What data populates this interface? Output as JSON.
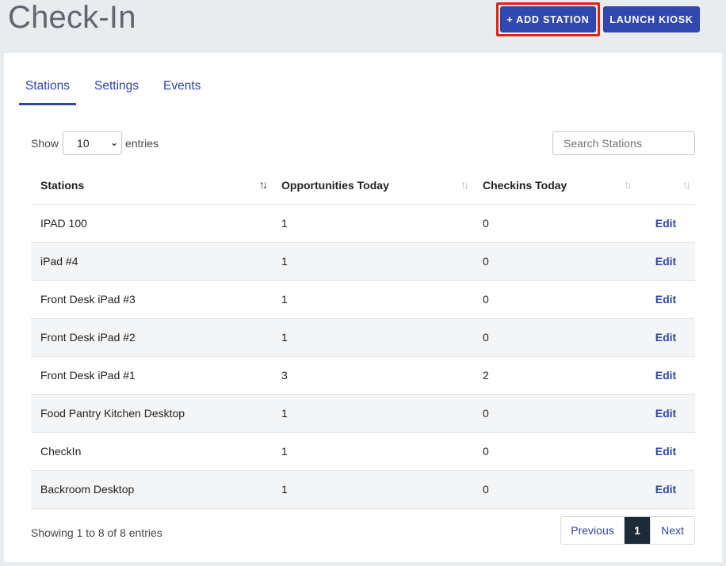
{
  "header": {
    "title": "Check-In",
    "add_station_label": "+ ADD STATION",
    "launch_kiosk_label": "LAUNCH KIOSK"
  },
  "tabs": [
    {
      "label": "Stations",
      "active": true
    },
    {
      "label": "Settings",
      "active": false
    },
    {
      "label": "Events",
      "active": false
    }
  ],
  "length_menu": {
    "prefix": "Show",
    "selected": "10",
    "suffix": "entries"
  },
  "search": {
    "placeholder": "Search Stations"
  },
  "table": {
    "columns": [
      "Stations",
      "Opportunities Today",
      "Checkins Today",
      ""
    ],
    "rows": [
      {
        "station": "IPAD 100",
        "opportunities": "1",
        "checkins": "0",
        "action": "Edit"
      },
      {
        "station": "iPad #4",
        "opportunities": "1",
        "checkins": "0",
        "action": "Edit"
      },
      {
        "station": "Front Desk iPad #3",
        "opportunities": "1",
        "checkins": "0",
        "action": "Edit"
      },
      {
        "station": "Front Desk iPad #2",
        "opportunities": "1",
        "checkins": "0",
        "action": "Edit"
      },
      {
        "station": "Front Desk iPad #1",
        "opportunities": "3",
        "checkins": "2",
        "action": "Edit"
      },
      {
        "station": "Food Pantry Kitchen Desktop",
        "opportunities": "1",
        "checkins": "0",
        "action": "Edit"
      },
      {
        "station": "CheckIn",
        "opportunities": "1",
        "checkins": "0",
        "action": "Edit"
      },
      {
        "station": "Backroom Desktop",
        "opportunities": "1",
        "checkins": "0",
        "action": "Edit"
      }
    ]
  },
  "footer": {
    "info": "Showing 1 to 8 of 8 entries",
    "previous_label": "Previous",
    "current_page": "1",
    "next_label": "Next"
  },
  "colors": {
    "primary": "#3148b1",
    "highlight": "#e5210e",
    "link": "#2c45a8",
    "active_page": "#1d2a38"
  }
}
